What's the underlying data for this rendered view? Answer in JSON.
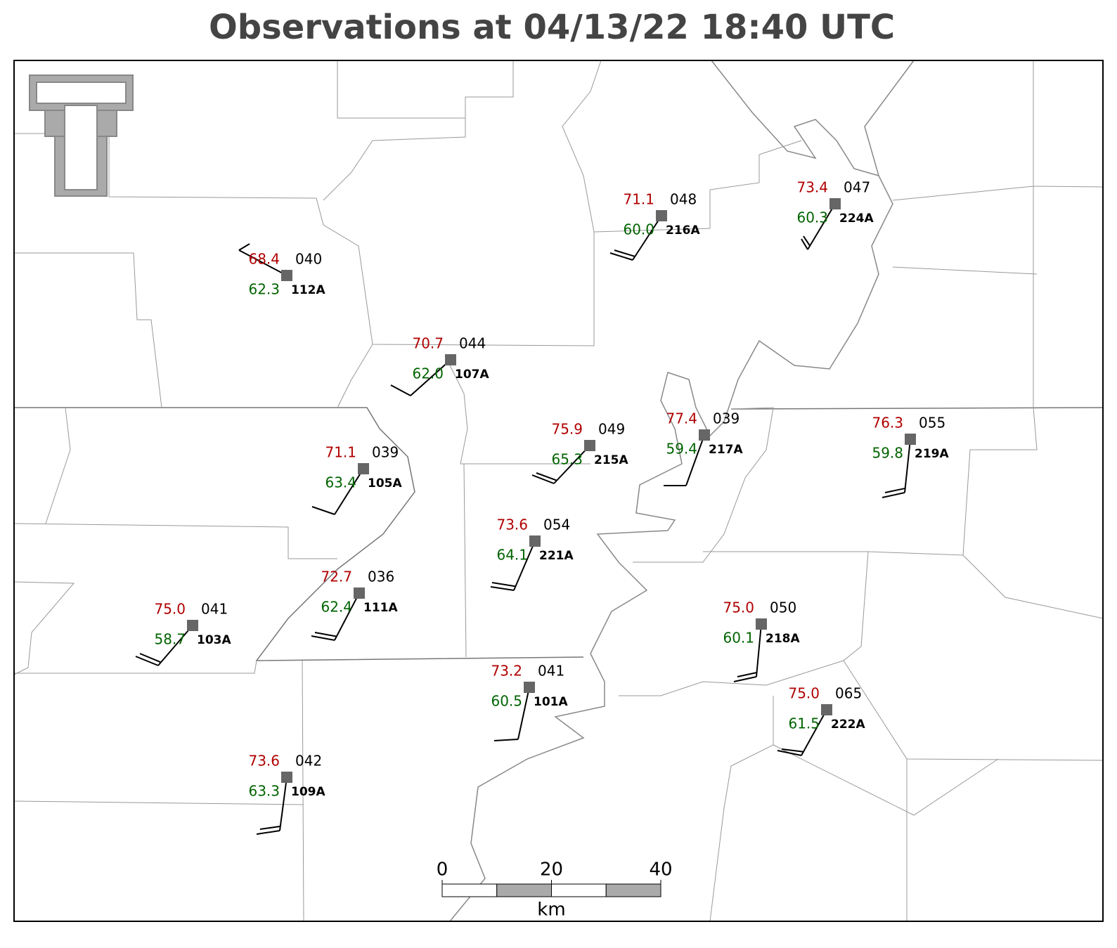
{
  "title": "Observations at 04/13/22 18:40 UTC",
  "stations": [
    {
      "id": "112A",
      "temperature": "68.4",
      "dewpoint": "62.3",
      "pressure": "040"
    },
    {
      "id": "107A",
      "temperature": "70.7",
      "dewpoint": "62.0",
      "pressure": "044"
    },
    {
      "id": "216A",
      "temperature": "71.1",
      "dewpoint": "60.0",
      "pressure": "048"
    },
    {
      "id": "224A",
      "temperature": "73.4",
      "dewpoint": "60.3",
      "pressure": "047"
    },
    {
      "id": "105A",
      "temperature": "71.1",
      "dewpoint": "63.4",
      "pressure": "039"
    },
    {
      "id": "215A",
      "temperature": "75.9",
      "dewpoint": "65.3",
      "pressure": "049"
    },
    {
      "id": "217A",
      "temperature": "77.4",
      "dewpoint": "59.4",
      "pressure": "039"
    },
    {
      "id": "219A",
      "temperature": "76.3",
      "dewpoint": "59.8",
      "pressure": "055"
    },
    {
      "id": "221A",
      "temperature": "73.6",
      "dewpoint": "64.1",
      "pressure": "054"
    },
    {
      "id": "111A",
      "temperature": "72.7",
      "dewpoint": "62.4",
      "pressure": "036"
    },
    {
      "id": "103A",
      "temperature": "75.0",
      "dewpoint": "58.7",
      "pressure": "041"
    },
    {
      "id": "218A",
      "temperature": "75.0",
      "dewpoint": "60.1",
      "pressure": "050"
    },
    {
      "id": "101A",
      "temperature": "73.2",
      "dewpoint": "60.5",
      "pressure": "041"
    },
    {
      "id": "222A",
      "temperature": "75.0",
      "dewpoint": "61.5",
      "pressure": "065"
    },
    {
      "id": "109A",
      "temperature": "73.6",
      "dewpoint": "63.3",
      "pressure": "042"
    }
  ],
  "scale_bar": {
    "ticks": [
      0,
      20,
      40
    ],
    "unit": "km"
  }
}
